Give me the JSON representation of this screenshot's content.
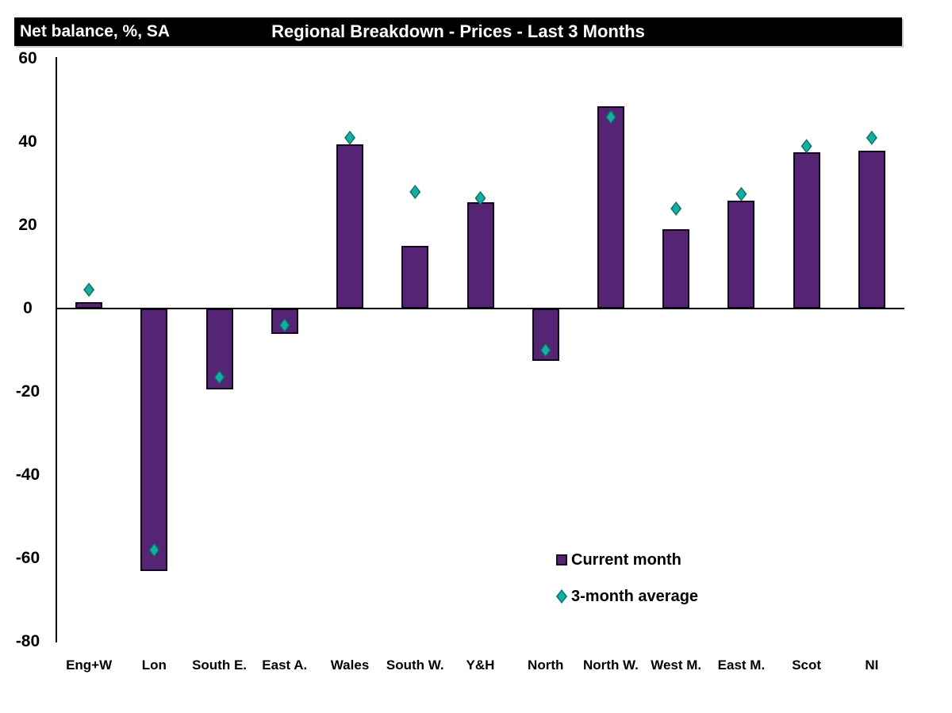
{
  "chart_data": {
    "type": "bar",
    "title": "Regional Breakdown - Prices - Last 3 Months",
    "ylabel": "Net balance, %, SA",
    "categories": [
      "Eng+W",
      "Lon",
      "South E.",
      "East A.",
      "Wales",
      "South W.",
      "Y&H",
      "North",
      "North W.",
      "West M.",
      "East M.",
      "Scot",
      "NI"
    ],
    "series": [
      {
        "name": "Current month",
        "marker": "square",
        "color": "#552475",
        "values": [
          1.5,
          -63,
          -19.5,
          -6,
          39.5,
          15,
          25.5,
          -12.5,
          48.5,
          19,
          26,
          37.5,
          38
        ]
      },
      {
        "name": "3-month average",
        "marker": "diamond",
        "color": "#11b0a4",
        "values": [
          4.5,
          -58,
          -16.5,
          -4,
          41,
          28,
          26.5,
          -10,
          46,
          24,
          27.5,
          39,
          41
        ]
      }
    ],
    "ylim": [
      -80,
      60
    ],
    "yticks": [
      60,
      40,
      20,
      0,
      -20,
      -40,
      -60,
      -80
    ],
    "grid": false,
    "legend_position": "inside-lower-right",
    "band_background": "#000000",
    "band_text_color": "#ffffff"
  }
}
